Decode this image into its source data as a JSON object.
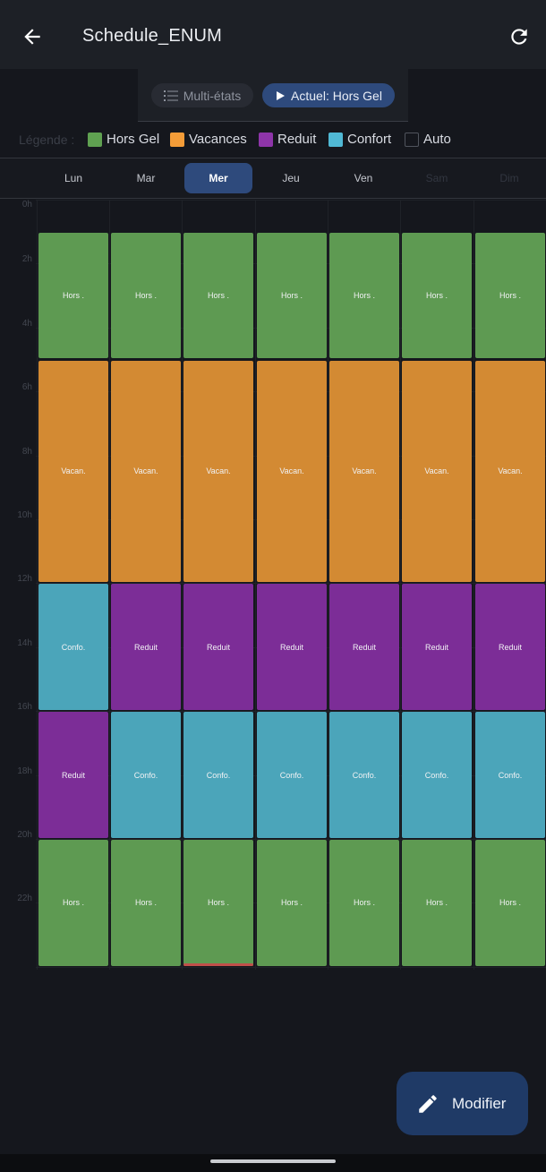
{
  "header": {
    "title": "Schedule_ENUM"
  },
  "mode": {
    "multi_label": "Multi-états",
    "current_label": "Actuel: Hors Gel"
  },
  "legend": {
    "label": "Légende :",
    "items": [
      {
        "label": "Hors Gel",
        "color": "#5fa151"
      },
      {
        "label": "Vacances",
        "color": "#f39c38"
      },
      {
        "label": "Reduit",
        "color": "#8e35a9"
      },
      {
        "label": "Confort",
        "color": "#50b9d5"
      },
      {
        "label": "Auto",
        "color": "#15171d"
      }
    ]
  },
  "days": [
    {
      "label": "Lun",
      "active": false,
      "dim": false
    },
    {
      "label": "Mar",
      "active": false,
      "dim": false
    },
    {
      "label": "Mer",
      "active": true,
      "dim": false
    },
    {
      "label": "Jeu",
      "active": false,
      "dim": false
    },
    {
      "label": "Ven",
      "active": false,
      "dim": false
    },
    {
      "label": "Sam",
      "active": false,
      "dim": true
    },
    {
      "label": "Dim",
      "active": false,
      "dim": true
    }
  ],
  "hours": [
    "0h",
    "2h",
    "4h",
    "6h",
    "8h",
    "10h",
    "12h",
    "14h",
    "16h",
    "18h",
    "20h",
    "22h"
  ],
  "states": {
    "hors": {
      "label": "Hors .",
      "color": "#5e9a52"
    },
    "vac": {
      "label": "Vacan.",
      "color": "#d38a33"
    },
    "red": {
      "label": "Reduit",
      "color": "#7c2d97"
    },
    "conf": {
      "label": "Confo.",
      "color": "#4ba5ba"
    }
  },
  "schedule": [
    [
      {
        "state": "hors",
        "start": 1,
        "end": 5
      },
      {
        "state": "vac",
        "start": 5,
        "end": 12
      },
      {
        "state": "conf",
        "start": 12,
        "end": 16
      },
      {
        "state": "red",
        "start": 16,
        "end": 20
      },
      {
        "state": "hors",
        "start": 20,
        "end": 24
      }
    ],
    [
      {
        "state": "hors",
        "start": 1,
        "end": 5
      },
      {
        "state": "vac",
        "start": 5,
        "end": 12
      },
      {
        "state": "red",
        "start": 12,
        "end": 16
      },
      {
        "state": "conf",
        "start": 16,
        "end": 20
      },
      {
        "state": "hors",
        "start": 20,
        "end": 24
      }
    ],
    [
      {
        "state": "hors",
        "start": 1,
        "end": 5
      },
      {
        "state": "vac",
        "start": 5,
        "end": 12
      },
      {
        "state": "red",
        "start": 12,
        "end": 16
      },
      {
        "state": "conf",
        "start": 16,
        "end": 20
      },
      {
        "state": "hors",
        "start": 20,
        "end": 24
      }
    ],
    [
      {
        "state": "hors",
        "start": 1,
        "end": 5
      },
      {
        "state": "vac",
        "start": 5,
        "end": 12
      },
      {
        "state": "red",
        "start": 12,
        "end": 16
      },
      {
        "state": "conf",
        "start": 16,
        "end": 20
      },
      {
        "state": "hors",
        "start": 20,
        "end": 24
      }
    ],
    [
      {
        "state": "hors",
        "start": 1,
        "end": 5
      },
      {
        "state": "vac",
        "start": 5,
        "end": 12
      },
      {
        "state": "red",
        "start": 12,
        "end": 16
      },
      {
        "state": "conf",
        "start": 16,
        "end": 20
      },
      {
        "state": "hors",
        "start": 20,
        "end": 24
      }
    ],
    [
      {
        "state": "hors",
        "start": 1,
        "end": 5
      },
      {
        "state": "vac",
        "start": 5,
        "end": 12
      },
      {
        "state": "red",
        "start": 12,
        "end": 16
      },
      {
        "state": "conf",
        "start": 16,
        "end": 20
      },
      {
        "state": "hors",
        "start": 20,
        "end": 24
      }
    ],
    [
      {
        "state": "hors",
        "start": 1,
        "end": 5
      },
      {
        "state": "vac",
        "start": 5,
        "end": 12
      },
      {
        "state": "red",
        "start": 12,
        "end": 16
      },
      {
        "state": "conf",
        "start": 16,
        "end": 20
      },
      {
        "state": "hors",
        "start": 20,
        "end": 24
      }
    ]
  ],
  "fab": {
    "label": "Modifier"
  }
}
